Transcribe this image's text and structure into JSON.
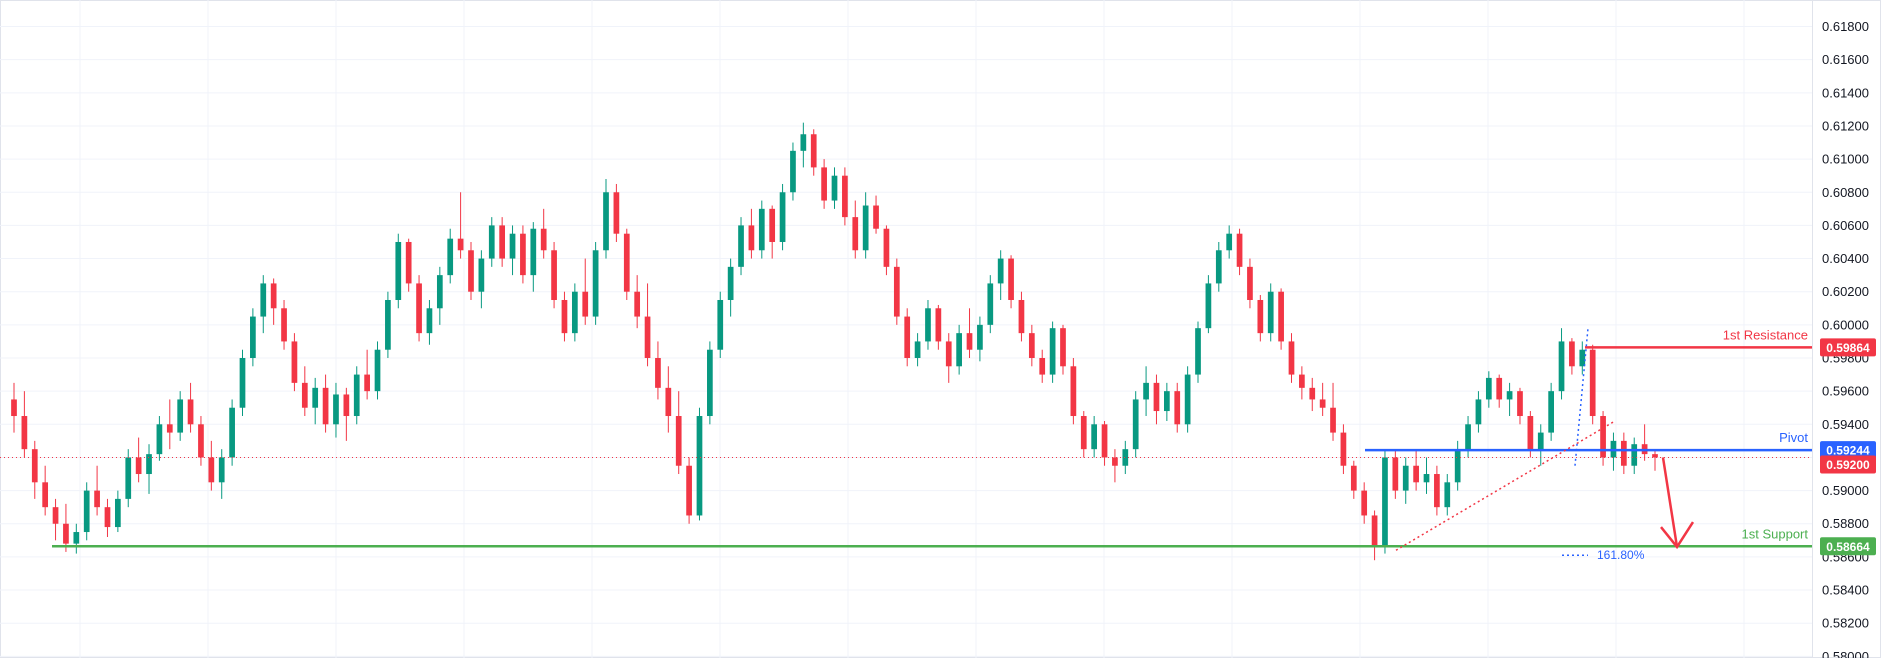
{
  "chart_data": {
    "type": "candlestick",
    "y_axis": {
      "position": "right",
      "ticks": [
        "0.58000",
        "0.58200",
        "0.58400",
        "0.58600",
        "0.58800",
        "0.59000",
        "0.59200",
        "0.59400",
        "0.59600",
        "0.59800",
        "0.60000",
        "0.60200",
        "0.60400",
        "0.60600",
        "0.60800",
        "0.61000",
        "0.61200",
        "0.61400",
        "0.61600",
        "0.61800"
      ],
      "range": [
        0.5799,
        0.6196
      ]
    },
    "grid": true,
    "colors": {
      "up": "#089981",
      "down": "#f23645",
      "grid": "#f0f3fa",
      "axis_text": "#131722"
    },
    "levels": [
      {
        "name": "1st Resistance",
        "value": 0.59864,
        "value_label": "0.59864",
        "color": "#f23645"
      },
      {
        "name": "Pivot",
        "value": 0.59244,
        "value_label": "0.59244",
        "color": "#2962ff"
      },
      {
        "name": "1st Support",
        "value": 0.58664,
        "value_label": "0.58664",
        "color": "#4caf50"
      }
    ],
    "current_price": {
      "value": 0.592,
      "value_label": "0.59200",
      "color": "#f23645"
    },
    "fib_extension_label": "161.80%",
    "candles": [
      [
        0.5955,
        0.5965,
        0.5935,
        0.5945
      ],
      [
        0.5945,
        0.596,
        0.592,
        0.5925
      ],
      [
        0.5925,
        0.593,
        0.5895,
        0.5905
      ],
      [
        0.5905,
        0.5915,
        0.5885,
        0.589
      ],
      [
        0.589,
        0.5895,
        0.587,
        0.588
      ],
      [
        0.588,
        0.5892,
        0.5863,
        0.5868
      ],
      [
        0.5868,
        0.588,
        0.5862,
        0.5875
      ],
      [
        0.5875,
        0.5905,
        0.587,
        0.59
      ],
      [
        0.59,
        0.5915,
        0.5885,
        0.589
      ],
      [
        0.589,
        0.5895,
        0.5872,
        0.5878
      ],
      [
        0.5878,
        0.59,
        0.5875,
        0.5895
      ],
      [
        0.5895,
        0.5925,
        0.589,
        0.592
      ],
      [
        0.592,
        0.5932,
        0.5905,
        0.591
      ],
      [
        0.591,
        0.5928,
        0.5898,
        0.5922
      ],
      [
        0.5922,
        0.5945,
        0.5918,
        0.594
      ],
      [
        0.594,
        0.5955,
        0.5925,
        0.5935
      ],
      [
        0.5935,
        0.596,
        0.593,
        0.5955
      ],
      [
        0.5955,
        0.5965,
        0.5935,
        0.594
      ],
      [
        0.594,
        0.5945,
        0.5915,
        0.592
      ],
      [
        0.592,
        0.593,
        0.59,
        0.5905
      ],
      [
        0.5905,
        0.5925,
        0.5895,
        0.592
      ],
      [
        0.592,
        0.5955,
        0.5915,
        0.595
      ],
      [
        0.595,
        0.5985,
        0.5945,
        0.598
      ],
      [
        0.598,
        0.601,
        0.5975,
        0.6005
      ],
      [
        0.6005,
        0.603,
        0.5995,
        0.6025
      ],
      [
        0.6025,
        0.6028,
        0.6,
        0.601
      ],
      [
        0.601,
        0.6015,
        0.5985,
        0.599
      ],
      [
        0.599,
        0.5995,
        0.596,
        0.5965
      ],
      [
        0.5965,
        0.5975,
        0.5945,
        0.595
      ],
      [
        0.595,
        0.5968,
        0.594,
        0.5962
      ],
      [
        0.5962,
        0.597,
        0.5935,
        0.594
      ],
      [
        0.594,
        0.5965,
        0.5932,
        0.5958
      ],
      [
        0.5958,
        0.5962,
        0.593,
        0.5945
      ],
      [
        0.5945,
        0.5975,
        0.594,
        0.597
      ],
      [
        0.597,
        0.5985,
        0.5955,
        0.596
      ],
      [
        0.596,
        0.599,
        0.5955,
        0.5985
      ],
      [
        0.5985,
        0.602,
        0.598,
        0.6015
      ],
      [
        0.6015,
        0.6055,
        0.601,
        0.605
      ],
      [
        0.605,
        0.6052,
        0.602,
        0.6025
      ],
      [
        0.6025,
        0.603,
        0.599,
        0.5995
      ],
      [
        0.5995,
        0.6015,
        0.5988,
        0.601
      ],
      [
        0.601,
        0.6035,
        0.6,
        0.603
      ],
      [
        0.603,
        0.6058,
        0.6025,
        0.6052
      ],
      [
        0.6052,
        0.608,
        0.604,
        0.6045
      ],
      [
        0.6045,
        0.605,
        0.6015,
        0.602
      ],
      [
        0.602,
        0.6045,
        0.601,
        0.604
      ],
      [
        0.604,
        0.6065,
        0.6035,
        0.606
      ],
      [
        0.606,
        0.6065,
        0.6035,
        0.604
      ],
      [
        0.604,
        0.606,
        0.603,
        0.6055
      ],
      [
        0.6055,
        0.606,
        0.6025,
        0.603
      ],
      [
        0.603,
        0.6062,
        0.602,
        0.6058
      ],
      [
        0.6058,
        0.607,
        0.604,
        0.6045
      ],
      [
        0.6045,
        0.605,
        0.601,
        0.6015
      ],
      [
        0.6015,
        0.602,
        0.599,
        0.5995
      ],
      [
        0.5995,
        0.6025,
        0.599,
        0.602
      ],
      [
        0.602,
        0.604,
        0.6,
        0.6005
      ],
      [
        0.6005,
        0.605,
        0.6,
        0.6045
      ],
      [
        0.6045,
        0.6088,
        0.604,
        0.608
      ],
      [
        0.608,
        0.6085,
        0.605,
        0.6055
      ],
      [
        0.6055,
        0.6058,
        0.6015,
        0.602
      ],
      [
        0.602,
        0.603,
        0.5998,
        0.6005
      ],
      [
        0.6005,
        0.6025,
        0.5975,
        0.598
      ],
      [
        0.598,
        0.599,
        0.5955,
        0.5962
      ],
      [
        0.5962,
        0.5975,
        0.5935,
        0.5945
      ],
      [
        0.5945,
        0.596,
        0.591,
        0.5915
      ],
      [
        0.5915,
        0.592,
        0.588,
        0.5885
      ],
      [
        0.5885,
        0.595,
        0.5882,
        0.5945
      ],
      [
        0.5945,
        0.599,
        0.594,
        0.5985
      ],
      [
        0.5985,
        0.602,
        0.598,
        0.6015
      ],
      [
        0.6015,
        0.604,
        0.6005,
        0.6035
      ],
      [
        0.6035,
        0.6065,
        0.603,
        0.606
      ],
      [
        0.606,
        0.607,
        0.604,
        0.6045
      ],
      [
        0.6045,
        0.6075,
        0.604,
        0.607
      ],
      [
        0.607,
        0.6072,
        0.604,
        0.605
      ],
      [
        0.605,
        0.6085,
        0.6045,
        0.608
      ],
      [
        0.608,
        0.611,
        0.6075,
        0.6105
      ],
      [
        0.6105,
        0.6122,
        0.6095,
        0.6115
      ],
      [
        0.6115,
        0.6118,
        0.609,
        0.6095
      ],
      [
        0.6095,
        0.61,
        0.607,
        0.6075
      ],
      [
        0.6075,
        0.6095,
        0.607,
        0.609
      ],
      [
        0.609,
        0.6095,
        0.606,
        0.6065
      ],
      [
        0.6065,
        0.6075,
        0.604,
        0.6045
      ],
      [
        0.6045,
        0.608,
        0.604,
        0.6072
      ],
      [
        0.6072,
        0.6078,
        0.6055,
        0.6058
      ],
      [
        0.6058,
        0.606,
        0.603,
        0.6035
      ],
      [
        0.6035,
        0.604,
        0.6,
        0.6005
      ],
      [
        0.6005,
        0.601,
        0.5975,
        0.598
      ],
      [
        0.598,
        0.5995,
        0.5975,
        0.599
      ],
      [
        0.599,
        0.6015,
        0.5985,
        0.601
      ],
      [
        0.601,
        0.6012,
        0.5985,
        0.599
      ],
      [
        0.599,
        0.5995,
        0.5965,
        0.5975
      ],
      [
        0.5975,
        0.6,
        0.597,
        0.5995
      ],
      [
        0.5995,
        0.601,
        0.598,
        0.5985
      ],
      [
        0.5985,
        0.6005,
        0.5978,
        0.6
      ],
      [
        0.6,
        0.603,
        0.5995,
        0.6025
      ],
      [
        0.6025,
        0.6045,
        0.6015,
        0.604
      ],
      [
        0.604,
        0.6042,
        0.601,
        0.6015
      ],
      [
        0.6015,
        0.602,
        0.599,
        0.5995
      ],
      [
        0.5995,
        0.6,
        0.5975,
        0.598
      ],
      [
        0.598,
        0.5985,
        0.5965,
        0.597
      ],
      [
        0.597,
        0.6002,
        0.5965,
        0.5998
      ],
      [
        0.5998,
        0.6,
        0.597,
        0.5975
      ],
      [
        0.5975,
        0.598,
        0.594,
        0.5945
      ],
      [
        0.5945,
        0.5948,
        0.592,
        0.5925
      ],
      [
        0.5925,
        0.5945,
        0.592,
        0.594
      ],
      [
        0.594,
        0.5942,
        0.5915,
        0.592
      ],
      [
        0.592,
        0.5925,
        0.5905,
        0.5915
      ],
      [
        0.5915,
        0.593,
        0.591,
        0.5925
      ],
      [
        0.5925,
        0.596,
        0.592,
        0.5955
      ],
      [
        0.5955,
        0.5975,
        0.5945,
        0.5965
      ],
      [
        0.5965,
        0.597,
        0.594,
        0.5948
      ],
      [
        0.5948,
        0.5965,
        0.5942,
        0.596
      ],
      [
        0.596,
        0.5965,
        0.5935,
        0.594
      ],
      [
        0.594,
        0.5975,
        0.5935,
        0.597
      ],
      [
        0.597,
        0.6002,
        0.5965,
        0.5998
      ],
      [
        0.5998,
        0.603,
        0.5995,
        0.6025
      ],
      [
        0.6025,
        0.605,
        0.602,
        0.6045
      ],
      [
        0.6045,
        0.606,
        0.604,
        0.6055
      ],
      [
        0.6055,
        0.6058,
        0.603,
        0.6035
      ],
      [
        0.6035,
        0.604,
        0.601,
        0.6015
      ],
      [
        0.6015,
        0.6018,
        0.599,
        0.5995
      ],
      [
        0.5995,
        0.6025,
        0.599,
        0.602
      ],
      [
        0.602,
        0.6022,
        0.5985,
        0.599
      ],
      [
        0.599,
        0.5995,
        0.5965,
        0.597
      ],
      [
        0.597,
        0.5975,
        0.5955,
        0.5962
      ],
      [
        0.5962,
        0.5968,
        0.5948,
        0.5955
      ],
      [
        0.5955,
        0.5965,
        0.5945,
        0.595
      ],
      [
        0.595,
        0.5965,
        0.593,
        0.5935
      ],
      [
        0.5935,
        0.594,
        0.591,
        0.5915
      ],
      [
        0.5915,
        0.5918,
        0.5895,
        0.59
      ],
      [
        0.59,
        0.5905,
        0.588,
        0.5885
      ],
      [
        0.5885,
        0.5888,
        0.5858,
        0.5866
      ],
      [
        0.5866,
        0.5925,
        0.5862,
        0.592
      ],
      [
        0.592,
        0.5925,
        0.5895,
        0.59
      ],
      [
        0.59,
        0.592,
        0.5892,
        0.5915
      ],
      [
        0.5915,
        0.5925,
        0.59,
        0.5905
      ],
      [
        0.5905,
        0.592,
        0.5898,
        0.591
      ],
      [
        0.591,
        0.5915,
        0.5885,
        0.589
      ],
      [
        0.589,
        0.591,
        0.5885,
        0.5905
      ],
      [
        0.5905,
        0.593,
        0.59,
        0.5925
      ],
      [
        0.5925,
        0.5945,
        0.592,
        0.594
      ],
      [
        0.594,
        0.596,
        0.5935,
        0.5955
      ],
      [
        0.5955,
        0.5972,
        0.595,
        0.5968
      ],
      [
        0.5968,
        0.597,
        0.595,
        0.5955
      ],
      [
        0.5955,
        0.5965,
        0.5945,
        0.596
      ],
      [
        0.596,
        0.5962,
        0.594,
        0.5945
      ],
      [
        0.5945,
        0.5948,
        0.592,
        0.5925
      ],
      [
        0.5925,
        0.594,
        0.5915,
        0.5935
      ],
      [
        0.5935,
        0.5965,
        0.593,
        0.596
      ],
      [
        0.596,
        0.5998,
        0.5955,
        0.599
      ],
      [
        0.599,
        0.5992,
        0.597,
        0.5975
      ],
      [
        0.5975,
        0.599,
        0.597,
        0.5985
      ],
      [
        0.5985,
        0.5988,
        0.594,
        0.5945
      ],
      [
        0.5945,
        0.5948,
        0.5915,
        0.592
      ],
      [
        0.592,
        0.5935,
        0.5912,
        0.593
      ],
      [
        0.593,
        0.5935,
        0.591,
        0.5915
      ],
      [
        0.5915,
        0.5932,
        0.591,
        0.5928
      ],
      [
        0.5928,
        0.594,
        0.5918,
        0.5922
      ],
      [
        0.5922,
        0.5925,
        0.5912,
        0.592
      ]
    ]
  }
}
